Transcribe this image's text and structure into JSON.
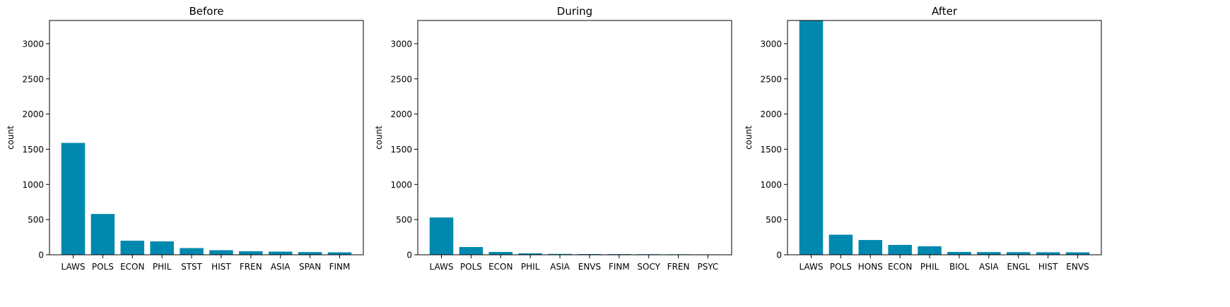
{
  "chart_data": [
    {
      "type": "bar",
      "title": "Before",
      "xlabel": "",
      "ylabel": "count",
      "ylim": [
        0,
        3330
      ],
      "yticks": [
        0,
        500,
        1000,
        1500,
        2000,
        2500,
        3000
      ],
      "categories": [
        "LAWS",
        "POLS",
        "ECON",
        "PHIL",
        "STST",
        "HIST",
        "FREN",
        "ASIA",
        "SPAN",
        "FINM"
      ],
      "values": [
        1590,
        580,
        200,
        190,
        95,
        65,
        50,
        45,
        38,
        35
      ],
      "grid": false,
      "color": "#0088ae"
    },
    {
      "type": "bar",
      "title": "During",
      "xlabel": "",
      "ylabel": "count",
      "ylim": [
        0,
        3330
      ],
      "yticks": [
        0,
        500,
        1000,
        1500,
        2000,
        2500,
        3000
      ],
      "categories": [
        "LAWS",
        "POLS",
        "ECON",
        "PHIL",
        "ASIA",
        "ENVS",
        "FINM",
        "SOCY",
        "FREN",
        "PSYC"
      ],
      "values": [
        530,
        110,
        40,
        20,
        12,
        10,
        9,
        8,
        7,
        6
      ],
      "grid": false,
      "color": "#0088ae"
    },
    {
      "type": "bar",
      "title": "After",
      "xlabel": "",
      "ylabel": "count",
      "ylim": [
        0,
        3330
      ],
      "yticks": [
        0,
        500,
        1000,
        1500,
        2000,
        2500,
        3000
      ],
      "categories": [
        "LAWS",
        "POLS",
        "HONS",
        "ECON",
        "PHIL",
        "BIOL",
        "ASIA",
        "ENGL",
        "HIST",
        "ENVS"
      ],
      "values": [
        3330,
        285,
        210,
        140,
        120,
        40,
        38,
        37,
        36,
        35
      ],
      "grid": false,
      "color": "#0088ae"
    }
  ]
}
